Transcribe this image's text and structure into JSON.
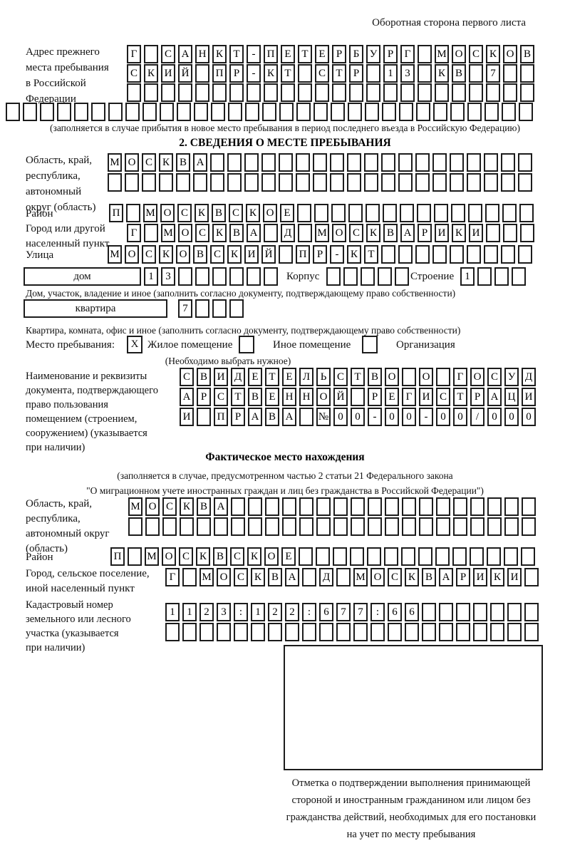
{
  "header": {
    "corner_note": "Оборотная сторона первого листа"
  },
  "prev_address": {
    "label_lines": [
      "Адрес прежнего",
      "места пребывания",
      "в Российской",
      "Федерации"
    ],
    "rows": [
      {
        "text": "Г САНКТ-ПЕТЕРБУРГ МОСКОВ",
        "len": 24
      },
      {
        "text": "СКИЙ ПР-КТ СТР 13 КВ 7",
        "len": 24
      },
      {
        "text": "",
        "len": 24
      },
      {
        "text": "",
        "len": 31
      }
    ],
    "footnote": "(заполняется в случае прибытия в новое место пребывания в период последнего въезда в Российскую Федерацию)"
  },
  "section2": {
    "title": "2. СВЕДЕНИЯ О МЕСТЕ ПРЕБЫВАНИЯ",
    "region": {
      "label_lines": [
        "Область, край,",
        "республика,",
        "автономный",
        "округ (область)"
      ],
      "rows": [
        {
          "text": "МОСКВА",
          "len": 25
        },
        {
          "text": "",
          "len": 25
        }
      ]
    },
    "district": {
      "label": "Район",
      "row": {
        "text": "П МОСКВСКОЕ",
        "len": 25
      }
    },
    "city": {
      "label_lines": [
        "Город или другой",
        "населенный пункт"
      ],
      "row": {
        "text": "Г МОСКВА Д МОСКВАРИКИ",
        "len": 24
      }
    },
    "street": {
      "label": "Улица",
      "row": {
        "text": "МОСКОВСКИЙ ПР-КТ",
        "len": 25
      }
    },
    "house": {
      "box_label": "дом",
      "row": {
        "text": "13",
        "len": 8
      },
      "korpus_label": "Корпус",
      "korpus_row": {
        "text": "",
        "len": 5
      },
      "stroenie_label": "Строение",
      "stroenie_row": {
        "text": "1",
        "len": 4
      },
      "footnote": "Дом, участок, владение и иное (заполнить согласно документу, подтверждающему право собственности)"
    },
    "apartment": {
      "box_label": "квартира",
      "row": {
        "text": "7",
        "len": 4
      },
      "footnote": "Квартира, комната, офис и иное (заполнить согласно документу, подтверждающему право собственности)"
    },
    "stay_type": {
      "label": "Место пребывания:",
      "options": [
        {
          "label": "Жилое помещение",
          "checked": "X"
        },
        {
          "label": "Иное помещение",
          "checked": ""
        },
        {
          "label": "Организация",
          "checked": ""
        }
      ],
      "hint": "(Необходимо выбрать нужное)"
    },
    "document": {
      "label_lines": [
        "Наименование и реквизиты",
        "документа, подтверждающего",
        "право пользования",
        "помещением (строением,",
        "сооружением) (указывается",
        "при наличии)"
      ],
      "rows": [
        {
          "text": "СВИДЕТЕЛЬСТВО О ГОСУД",
          "len": 21
        },
        {
          "text": "АРСТВЕННОЙ РЕГИСТРАЦИ",
          "len": 21
        },
        {
          "text": "И ПРАВА №00-00-00/000",
          "len": 21
        }
      ]
    }
  },
  "fact": {
    "title": "Фактическое место нахождения",
    "note_lines": [
      "(заполняется в случае, предусмотренном частью 2 статьи 21 Федерального закона",
      "\"О миграционном учете иностранных граждан и лиц без гражданства в Российской Федерации\")"
    ],
    "region": {
      "label_lines": [
        "Область, край,",
        "республика,",
        "автономный округ",
        "(область)"
      ],
      "rows": [
        {
          "text": "МОСКВА",
          "len": 24
        },
        {
          "text": "",
          "len": 24
        }
      ]
    },
    "district": {
      "label": "Район",
      "row": {
        "text": "П МОСКВСКОЕ",
        "len": 25
      }
    },
    "city": {
      "label_lines": [
        "Город, сельское поселение,",
        "иной населенный пункт"
      ],
      "row": {
        "text": "Г МОСКВА Д МОСКВАРИКИ",
        "len": 22
      }
    },
    "cadastre": {
      "label_lines": [
        "Кадастровый номер",
        "земельного или лесного",
        "участка (указывается",
        "при наличии)"
      ],
      "rows": [
        {
          "text": "1123:122:677:66",
          "len": 22
        },
        {
          "text": "",
          "len": 22
        }
      ]
    },
    "stamp_caption_lines": [
      "Отметка о подтверждении выполнения принимающей",
      "стороной и иностранным гражданином или лицом без",
      "гражданства действий, необходимых для его постановки",
      "на учет по месту пребывания"
    ]
  }
}
